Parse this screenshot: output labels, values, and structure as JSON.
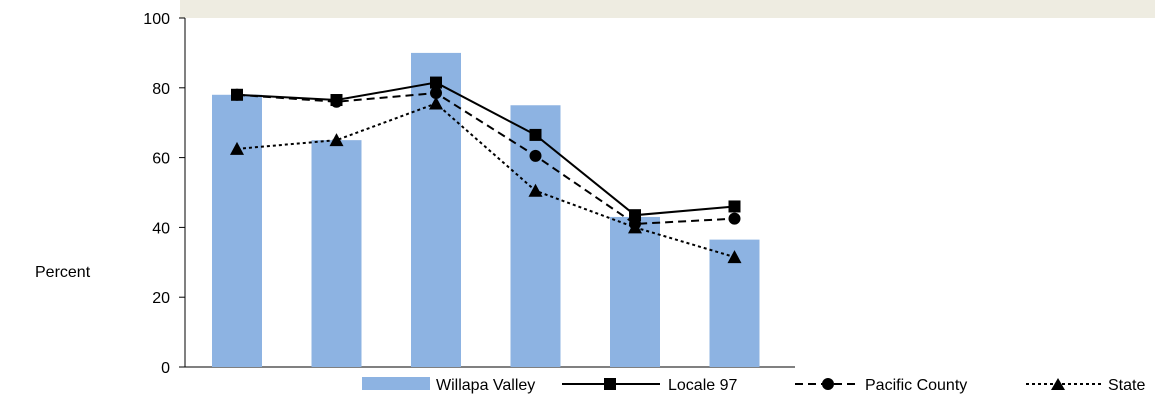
{
  "chart_data": {
    "type": "bar",
    "ylabel": "Percent",
    "ylim": [
      0,
      100
    ],
    "yticks": [
      0,
      20,
      40,
      60,
      80,
      100
    ],
    "grid": false,
    "legend_position": "bottom",
    "bar_series": {
      "name": "Willapa Valley",
      "color": "#8db3e2",
      "values": [
        78,
        65,
        90,
        75,
        43,
        36.5
      ]
    },
    "line_series": [
      {
        "name": "Locale 97",
        "marker": "square",
        "dash": "solid",
        "values": [
          78,
          76.5,
          81.5,
          66.5,
          43.5,
          46
        ]
      },
      {
        "name": "Pacific County",
        "marker": "circle",
        "dash": "dashed",
        "values": [
          78,
          76,
          78.5,
          60.5,
          41,
          42.5
        ]
      },
      {
        "name": "State",
        "marker": "triangle",
        "dash": "dotted",
        "values": [
          62.5,
          65,
          75.5,
          50.5,
          40,
          31.5
        ]
      }
    ]
  },
  "colors": {
    "bar": "#8db3e2",
    "title_band": "#eeece1",
    "line": "#000000"
  }
}
